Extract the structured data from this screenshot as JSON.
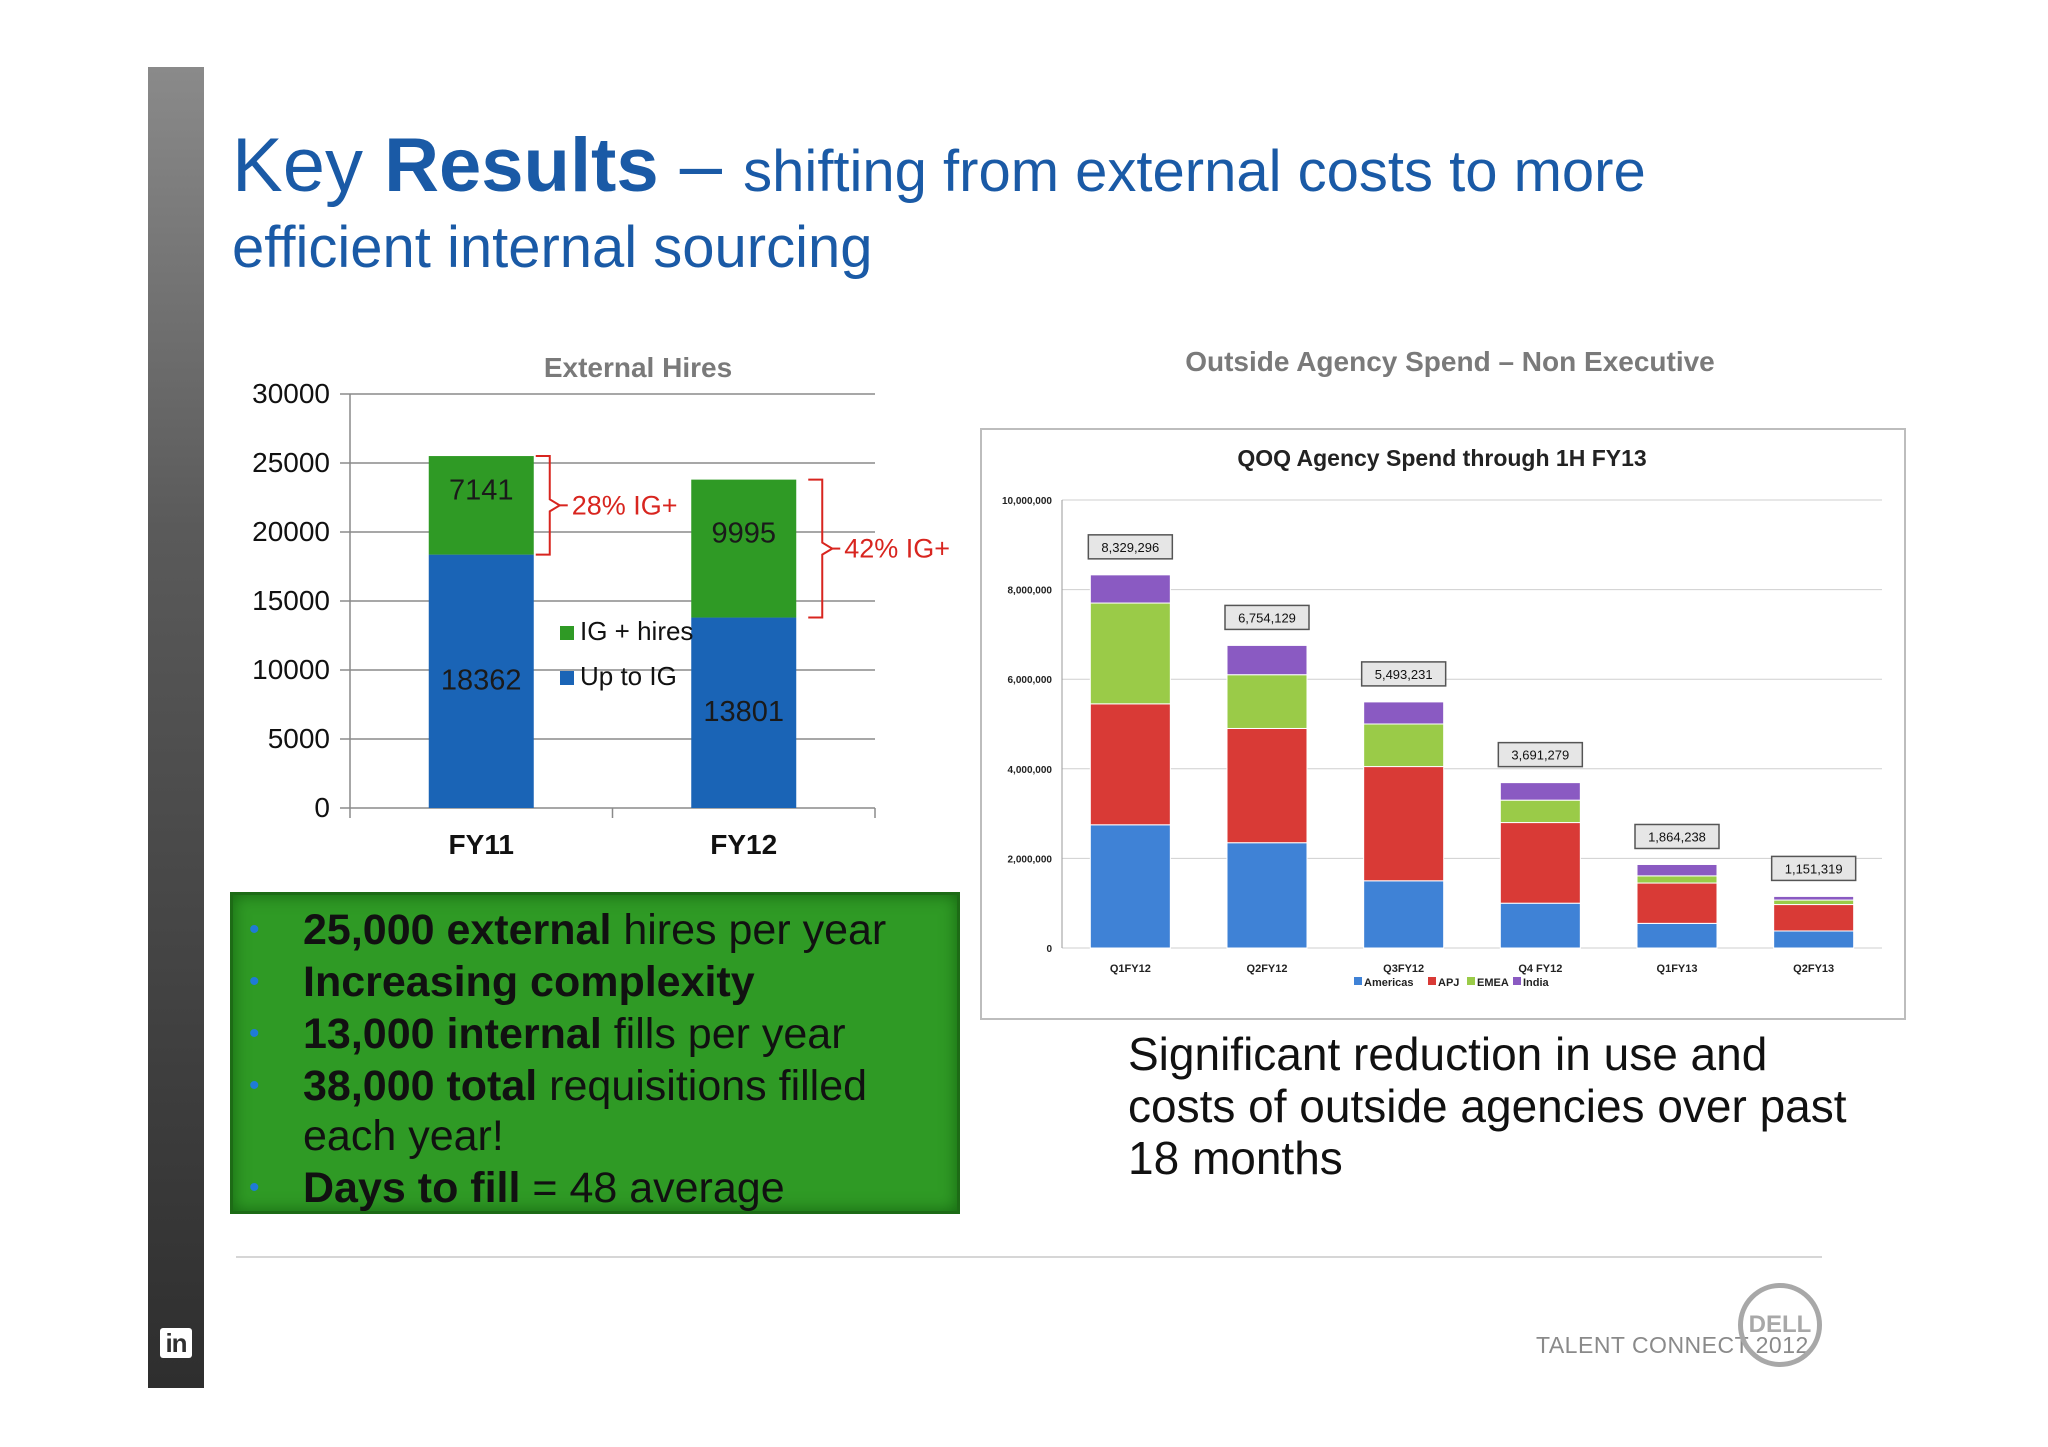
{
  "title": {
    "key": "Key",
    "results": "Results",
    "dash": "–",
    "subtitle_line1": "shifting from external costs to more",
    "subtitle_line2": "efficient internal sourcing"
  },
  "external_hires_title": "External Hires",
  "agency_spend_title": "Outside Agency Spend – Non Executive",
  "chart_data": [
    {
      "type": "bar",
      "stacked": true,
      "title": "External Hires",
      "categories": [
        "FY11",
        "FY12"
      ],
      "series": [
        {
          "name": "Up to IG",
          "values": [
            18362,
            13801
          ],
          "color": "#1a64b6"
        },
        {
          "name": "IG + hires",
          "values": [
            7141,
            9995
          ],
          "color": "#2f9a25"
        }
      ],
      "ylim": [
        0,
        30000
      ],
      "yticks": [
        "0",
        "5000",
        "10000",
        "15000",
        "20000",
        "25000",
        "30000"
      ],
      "annotations": [
        "28% IG+",
        "42% IG+"
      ],
      "legend_placement": "center",
      "grid": true
    },
    {
      "type": "bar",
      "stacked": true,
      "title": "QOQ Agency Spend through 1H FY13",
      "categories": [
        "Q1FY12",
        "Q2FY12",
        "Q3FY12",
        "Q4 FY12",
        "Q1FY13",
        "Q2FY13"
      ],
      "totals": [
        8329296,
        6754129,
        5493231,
        3691279,
        1864238,
        1151319
      ],
      "total_labels": [
        "8,329,296",
        "6,754,129",
        "5,493,231",
        "3,691,279",
        "1,864,238",
        "1,151,319"
      ],
      "series": [
        {
          "name": "Americas",
          "values": [
            2750000,
            2350000,
            1500000,
            1000000,
            550000,
            380000
          ],
          "color": "#3f82d6"
        },
        {
          "name": "APJ",
          "values": [
            2700000,
            2550000,
            2550000,
            1800000,
            900000,
            590000
          ],
          "color": "#d93a36"
        },
        {
          "name": "EMEA",
          "values": [
            2250000,
            1200000,
            950000,
            500000,
            160000,
            100000
          ],
          "color": "#9acb48"
        },
        {
          "name": "India",
          "values": [
            629296,
            654129,
            493231,
            391279,
            254238,
            81319
          ],
          "color": "#8a5ac2"
        }
      ],
      "ylim": [
        0,
        10000000
      ],
      "yticks": [
        "0",
        "2,000,000",
        "4,000,000",
        "6,000,000",
        "8,000,000",
        "10,000,000"
      ],
      "legend_placement": "bottom",
      "grid": true
    }
  ],
  "bullets": [
    {
      "bold": "25,000 external",
      "rest": " hires per year"
    },
    {
      "bold": "Increasing complexity",
      "rest": ""
    },
    {
      "bold": "13,000 internal",
      "rest": " fills per year"
    },
    {
      "bold": "38,000 total",
      "rest": " requisitions filled each year!"
    },
    {
      "bold": "Days to fill",
      "rest": " = 48 average"
    }
  ],
  "summary": "Significant reduction in use and costs of outside agencies over past 18 months",
  "footer": "TALENT CONNECT 2012",
  "logo_text": "DELL",
  "linkedin_badge": "in"
}
